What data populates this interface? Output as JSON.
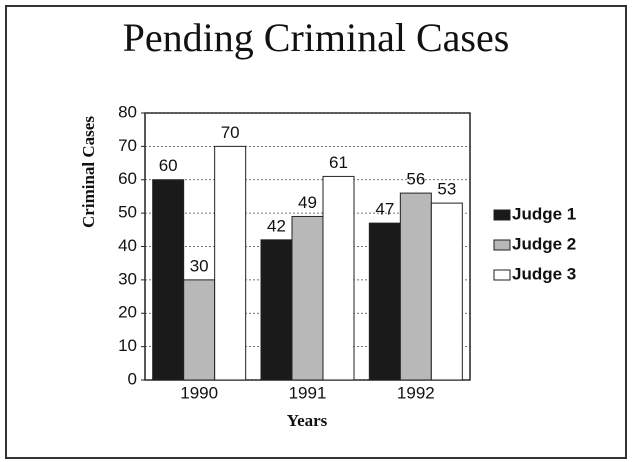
{
  "chart_data": {
    "type": "bar",
    "title": "Pending Criminal Cases",
    "x_label": "Years",
    "y_label": "Criminal Cases",
    "categories": [
      "1990",
      "1991",
      "1992"
    ],
    "series": [
      {
        "name": "Judge 1",
        "color": "#1a1a1a",
        "values": [
          60,
          42,
          47
        ]
      },
      {
        "name": "Judge 2",
        "color": "#b8b8b8",
        "values": [
          30,
          49,
          56
        ]
      },
      {
        "name": "Judge 3",
        "color": "#ffffff",
        "values": [
          70,
          61,
          53
        ]
      }
    ],
    "ylim": [
      0,
      80
    ],
    "yticks": [
      0,
      10,
      20,
      30,
      40,
      50,
      60,
      70,
      80
    ],
    "grid": true,
    "legend": "right"
  }
}
